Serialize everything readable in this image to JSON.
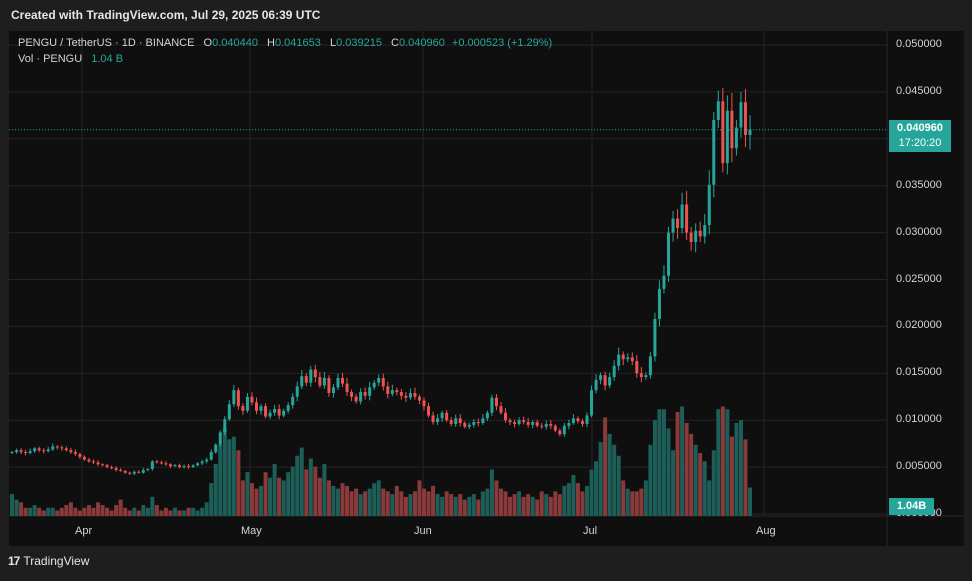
{
  "header": {
    "created_text": "Created with TradingView.com, Jul 29, 2025 06:39 UTC"
  },
  "legend": {
    "symbol": "PENGU / TetherUS · 1D · BINANCE",
    "o_label": "O",
    "o": "0.040440",
    "h_label": "H",
    "h": "0.041653",
    "l_label": "L",
    "l": "0.039215",
    "c_label": "C",
    "c": "0.040960",
    "change": "+0.000523 (+1.29%)",
    "vol_label": "Vol · PENGU",
    "vol_value": "1.04 B"
  },
  "price_axis": {
    "ticks": [
      "0.050000",
      "0.045000",
      "0.040000",
      "0.035000",
      "0.030000",
      "0.025000",
      "0.020000",
      "0.015000",
      "0.010000",
      "0.005000",
      "0.000000"
    ],
    "current_price": "0.040960",
    "countdown": "17:20:20",
    "volume_badge": "1.04B"
  },
  "time_axis": {
    "labels": [
      "Apr",
      "May",
      "Jun",
      "Jul",
      "Aug"
    ]
  },
  "footer": {
    "brand": "TradingView",
    "logo": "17"
  },
  "colors": {
    "up": "#26a69a",
    "down": "#ef5350",
    "vol_up": "#1d5e58",
    "vol_down": "#8a3a3a",
    "grid": "#242424"
  },
  "chart_data": {
    "type": "candlestick",
    "title": "PENGU / TetherUS · 1D · BINANCE",
    "x_range": [
      "2025-03-09",
      "2025-07-29"
    ],
    "ylim": [
      0,
      0.05
    ],
    "y_ticks": [
      0,
      0.005,
      0.01,
      0.015,
      0.02,
      0.025,
      0.03,
      0.035,
      0.04,
      0.045,
      0.05
    ],
    "last_close": 0.04096,
    "last_volume_billions": 1.04,
    "close_series": [
      0.0066,
      0.0068,
      0.0066,
      0.0065,
      0.0067,
      0.007,
      0.0068,
      0.0067,
      0.0069,
      0.0072,
      0.0071,
      0.007,
      0.0068,
      0.0066,
      0.0064,
      0.0061,
      0.0058,
      0.0056,
      0.0055,
      0.0053,
      0.0052,
      0.005,
      0.0049,
      0.0047,
      0.0046,
      0.0044,
      0.0043,
      0.0045,
      0.0044,
      0.0047,
      0.0048,
      0.0056,
      0.0055,
      0.0054,
      0.0053,
      0.0051,
      0.0052,
      0.005,
      0.0051,
      0.005,
      0.0052,
      0.0054,
      0.0056,
      0.0058,
      0.0066,
      0.0074,
      0.0087,
      0.0101,
      0.0117,
      0.0132,
      0.0115,
      0.011,
      0.0125,
      0.0119,
      0.011,
      0.0115,
      0.0104,
      0.0108,
      0.0112,
      0.0105,
      0.011,
      0.0116,
      0.0125,
      0.0136,
      0.0147,
      0.014,
      0.0154,
      0.0146,
      0.0137,
      0.0145,
      0.0129,
      0.0135,
      0.0145,
      0.0139,
      0.013,
      0.0125,
      0.012,
      0.013,
      0.0126,
      0.0135,
      0.014,
      0.0145,
      0.0136,
      0.0128,
      0.0132,
      0.013,
      0.0126,
      0.0124,
      0.0129,
      0.0125,
      0.0121,
      0.0115,
      0.0105,
      0.0098,
      0.0102,
      0.0108,
      0.01,
      0.0096,
      0.0102,
      0.0097,
      0.0093,
      0.0095,
      0.0098,
      0.0097,
      0.0102,
      0.0108,
      0.0124,
      0.0115,
      0.0108,
      0.01,
      0.0098,
      0.0096,
      0.01,
      0.0098,
      0.0095,
      0.0098,
      0.0094,
      0.0093,
      0.0096,
      0.0094,
      0.0089,
      0.0085,
      0.0094,
      0.0097,
      0.0102,
      0.0099,
      0.0096,
      0.0105,
      0.0132,
      0.0143,
      0.0148,
      0.0137,
      0.0146,
      0.0158,
      0.017,
      0.0165,
      0.0167,
      0.0163,
      0.015,
      0.0146,
      0.0148,
      0.0168,
      0.0208,
      0.024,
      0.0254,
      0.03,
      0.0315,
      0.0305,
      0.033,
      0.03,
      0.029,
      0.0302,
      0.0296,
      0.0308,
      0.0351,
      0.042,
      0.044,
      0.0374,
      0.043,
      0.039,
      0.0412,
      0.0439,
      0.0404,
      0.04096
    ],
    "volume_series_billions": [
      0.8,
      0.6,
      0.5,
      0.3,
      0.3,
      0.4,
      0.3,
      0.2,
      0.3,
      0.3,
      0.2,
      0.3,
      0.4,
      0.5,
      0.3,
      0.2,
      0.3,
      0.4,
      0.3,
      0.5,
      0.4,
      0.3,
      0.2,
      0.4,
      0.6,
      0.3,
      0.2,
      0.3,
      0.2,
      0.4,
      0.3,
      0.7,
      0.4,
      0.2,
      0.3,
      0.2,
      0.3,
      0.2,
      0.2,
      0.3,
      0.3,
      0.2,
      0.3,
      0.5,
      1.2,
      1.9,
      2.6,
      3.2,
      2.8,
      2.9,
      2.4,
      1.3,
      1.6,
      1.2,
      1.0,
      1.1,
      1.6,
      1.4,
      1.9,
      1.4,
      1.3,
      1.6,
      1.8,
      2.2,
      2.5,
      1.7,
      2.1,
      1.8,
      1.4,
      1.9,
      1.3,
      1.1,
      1.0,
      1.2,
      1.1,
      0.9,
      1.0,
      0.8,
      0.9,
      1.0,
      1.2,
      1.3,
      1.0,
      0.9,
      0.8,
      1.1,
      0.9,
      0.7,
      0.8,
      0.9,
      1.3,
      1.0,
      0.9,
      1.1,
      0.8,
      0.7,
      0.9,
      0.8,
      0.7,
      0.8,
      0.6,
      0.7,
      0.8,
      0.6,
      0.9,
      1.0,
      1.7,
      1.3,
      1.0,
      0.9,
      0.7,
      0.8,
      0.9,
      0.7,
      0.8,
      0.7,
      0.6,
      0.9,
      0.8,
      0.7,
      0.9,
      0.8,
      1.1,
      1.2,
      1.5,
      1.2,
      0.9,
      1.1,
      1.7,
      2.0,
      2.7,
      3.6,
      3.0,
      2.6,
      2.2,
      1.3,
      1.0,
      0.9,
      0.9,
      1.0,
      1.3,
      2.6,
      3.5,
      3.9,
      3.9,
      3.2,
      2.4,
      3.8,
      4.0,
      3.4,
      3.0,
      2.6,
      2.3,
      2.0,
      1.3,
      2.4,
      3.9,
      4.0,
      3.9,
      2.9,
      3.4,
      3.5,
      2.8,
      1.04
    ]
  }
}
